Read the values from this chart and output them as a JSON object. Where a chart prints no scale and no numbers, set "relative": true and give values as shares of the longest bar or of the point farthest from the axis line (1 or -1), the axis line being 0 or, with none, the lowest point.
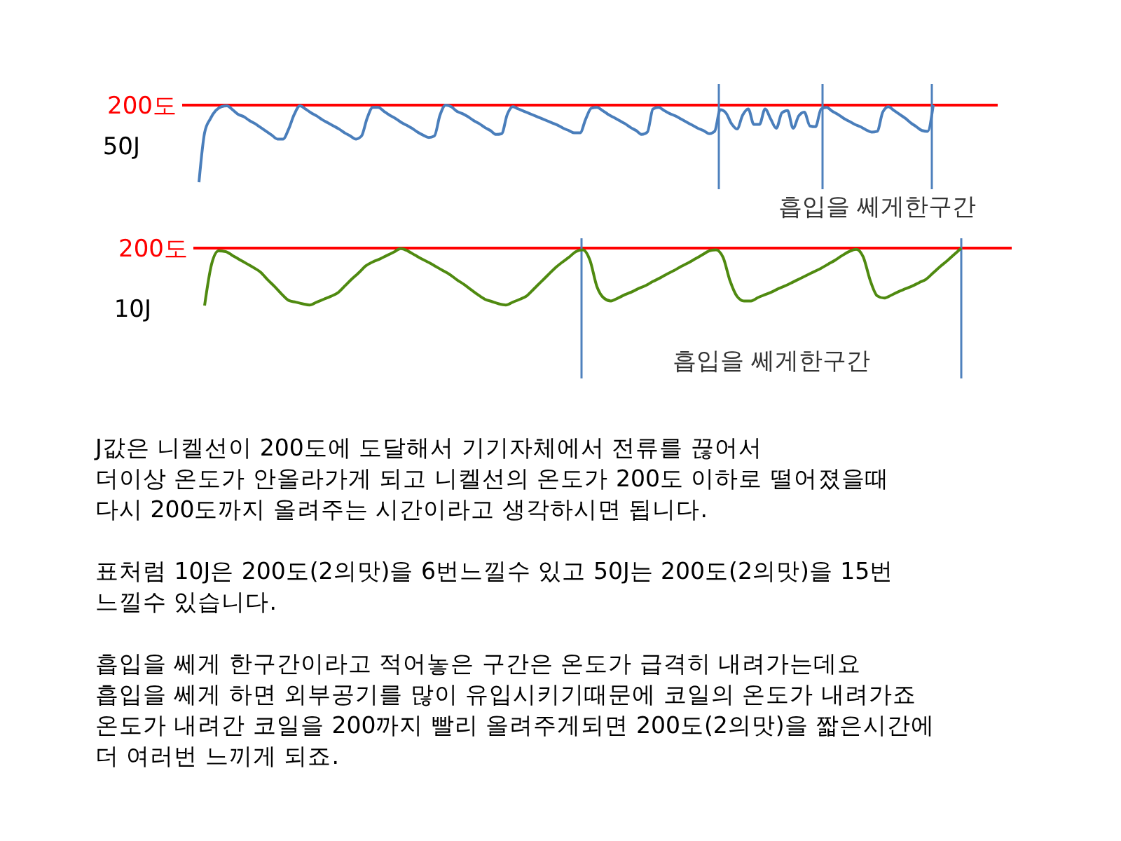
{
  "chart_data": [
    {
      "type": "line",
      "relative": true,
      "ylabel": "50J",
      "marker": "none",
      "line_style": "solid",
      "categories": [
        null,
        null,
        null,
        null,
        null,
        null,
        null,
        null,
        null,
        null,
        null,
        null,
        null,
        null,
        null,
        null,
        null,
        null,
        null,
        null,
        null,
        null,
        null,
        null,
        null,
        null,
        null,
        null,
        null,
        null,
        null,
        null,
        null,
        null,
        null,
        null,
        null,
        null,
        null,
        null,
        null,
        null,
        null,
        null,
        null,
        null,
        null,
        null,
        null,
        null,
        null,
        null,
        null,
        null,
        null,
        null,
        null,
        null,
        null,
        null,
        null,
        null,
        null,
        null,
        null,
        null,
        null,
        null,
        null,
        null,
        null,
        null,
        null,
        null,
        null,
        null,
        null,
        null,
        null,
        null,
        null,
        null,
        null,
        null,
        null,
        null,
        null,
        null,
        null,
        null,
        null,
        null,
        null,
        null,
        null,
        null,
        null,
        null,
        null,
        null,
        null,
        null,
        null,
        null,
        null,
        null,
        null,
        null,
        null,
        null,
        null,
        null,
        null,
        null,
        null,
        null,
        null,
        null,
        null,
        null,
        null,
        null,
        null,
        null,
        null,
        null,
        null,
        null,
        null,
        null,
        null,
        null
      ],
      "series": [
        {
          "color": "#4a7ebb",
          "values": [
            0,
            0.64,
            0.82,
            0.93,
            0.98,
            0.99,
            0.94,
            0.88,
            0.85,
            0.8,
            0.76,
            0.71,
            0.66,
            0.61,
            0.56,
            0.56,
            0.69,
            0.88,
            0.99,
            0.95,
            0.9,
            0.86,
            0.81,
            0.77,
            0.73,
            0.69,
            0.64,
            0.6,
            0.56,
            0.6,
            0.83,
            0.97,
            0.97,
            0.92,
            0.87,
            0.83,
            0.78,
            0.74,
            0.7,
            0.65,
            0.61,
            0.58,
            0.6,
            0.87,
            1,
            0.98,
            0.92,
            0.89,
            0.85,
            0.8,
            0.76,
            0.71,
            0.67,
            0.62,
            0.63,
            0.88,
            0.98,
            0.95,
            0.92,
            0.89,
            0.86,
            0.83,
            0.8,
            0.77,
            0.74,
            0.7,
            0.67,
            0.64,
            0.64,
            0.82,
            0.96,
            0.97,
            0.93,
            0.88,
            0.84,
            0.8,
            0.76,
            0.71,
            0.67,
            0.62,
            0.65,
            0.95,
            0.97,
            0.93,
            0.89,
            0.86,
            0.82,
            0.78,
            0.74,
            0.7,
            0.67,
            0.63,
            0.66,
            0.94,
            0.9,
            0.76,
            0.69,
            0.87,
            0.95,
            0.75,
            0.75,
            0.95,
            0.82,
            0.7,
            0.9,
            0.93,
            0.7,
            0.86,
            0.91,
            0.73,
            0.72,
            0.95,
            0.97,
            0.92,
            0.88,
            0.83,
            0.79,
            0.75,
            0.72,
            0.68,
            0.65,
            0.66,
            0.91,
            0.98,
            0.93,
            0.88,
            0.83,
            0.77,
            0.72,
            0.67,
            0.66,
            1
          ]
        }
      ],
      "ref_lines": [
        {
          "axis": "y",
          "value": 1,
          "label": "200도",
          "color": "#ff0000"
        }
      ],
      "annotations": [
        "흡입을 쎄게한구간"
      ]
    },
    {
      "type": "line",
      "relative": true,
      "ylabel": "10J",
      "marker": "none",
      "line_style": "solid",
      "categories": [
        null,
        null,
        null,
        null,
        null,
        null,
        null,
        null,
        null,
        null,
        null,
        null,
        null,
        null,
        null,
        null,
        null,
        null,
        null,
        null,
        null,
        null,
        null,
        null,
        null,
        null,
        null,
        null,
        null,
        null,
        null,
        null,
        null,
        null,
        null,
        null,
        null,
        null,
        null,
        null,
        null,
        null,
        null,
        null,
        null,
        null,
        null,
        null,
        null,
        null,
        null,
        null,
        null,
        null,
        null,
        null,
        null,
        null,
        null,
        null,
        null,
        null,
        null,
        null,
        null,
        null,
        null,
        null,
        null,
        null,
        null,
        null,
        null,
        null,
        null,
        null,
        null,
        null,
        null,
        null,
        null,
        null,
        null,
        null,
        null,
        null,
        null,
        null,
        null,
        null,
        null,
        null,
        null,
        null,
        null,
        null,
        null,
        null,
        null,
        null,
        null,
        null,
        null,
        null,
        null,
        null,
        null,
        null,
        null
      ],
      "series": [
        {
          "color": "#4f8a10",
          "values": [
            0,
            0.72,
            0.95,
            0.94,
            0.87,
            0.8,
            0.73,
            0.66,
            0.58,
            0.45,
            0.33,
            0.2,
            0.09,
            0.06,
            0.03,
            0.01,
            0.06,
            0.11,
            0.16,
            0.22,
            0.34,
            0.46,
            0.57,
            0.69,
            0.76,
            0.81,
            0.87,
            0.93,
            0.99,
            0.95,
            0.88,
            0.81,
            0.75,
            0.68,
            0.61,
            0.54,
            0.45,
            0.37,
            0.28,
            0.19,
            0.11,
            0.07,
            0.03,
            0.01,
            0.06,
            0.11,
            0.17,
            0.29,
            0.41,
            0.53,
            0.65,
            0.75,
            0.84,
            0.94,
            0.97,
            0.79,
            0.33,
            0.13,
            0.08,
            0.13,
            0.19,
            0.24,
            0.3,
            0.35,
            0.42,
            0.48,
            0.55,
            0.61,
            0.68,
            0.74,
            0.81,
            0.88,
            0.95,
            0.97,
            0.84,
            0.43,
            0.16,
            0.08,
            0.08,
            0.14,
            0.19,
            0.24,
            0.3,
            0.35,
            0.41,
            0.47,
            0.53,
            0.59,
            0.65,
            0.72,
            0.79,
            0.87,
            0.94,
            0.98,
            0.85,
            0.44,
            0.17,
            0.13,
            0.18,
            0.24,
            0.29,
            0.34,
            0.4,
            0.46,
            0.57,
            0.68,
            0.78,
            0.89,
            1
          ]
        }
      ],
      "ref_lines": [
        {
          "axis": "y",
          "value": 1,
          "label": "200도",
          "color": "#ff0000"
        }
      ],
      "annotations": [
        "흡입을 쎄게한구간"
      ]
    },
    {
      "type": "other",
      "annotations": [
        "J값은 니켈선이 200도에 도달해서 기기자체에서 전류를 끊어서\n더이상 온도가 안올라가게 되고 니켈선의 온도가 200도 이하로 떨어졌을때\n다시 200도까지 올려주는 시간이라고 생각하시면 됩니다.",
        "표처럼 10J은 200도(2의맛)을 6번느낄수 있고 50J는 200도(2의맛)을 15번\n느낄수 있습니다.",
        "흡입을 쎄게 한구간이라고 적어놓은 구간은 온도가 급격히 내려가는데요\n흡입을 쎄게 하면 외부공기를 많이 유입시키기때문에 코일의 온도가 내려가죠\n온도가 내려간 코일을 200까지 빨리 올려주게되면 200도(2의맛)을 짧은시간에\n더 여러번 느끼게 되죠."
      ]
    }
  ]
}
